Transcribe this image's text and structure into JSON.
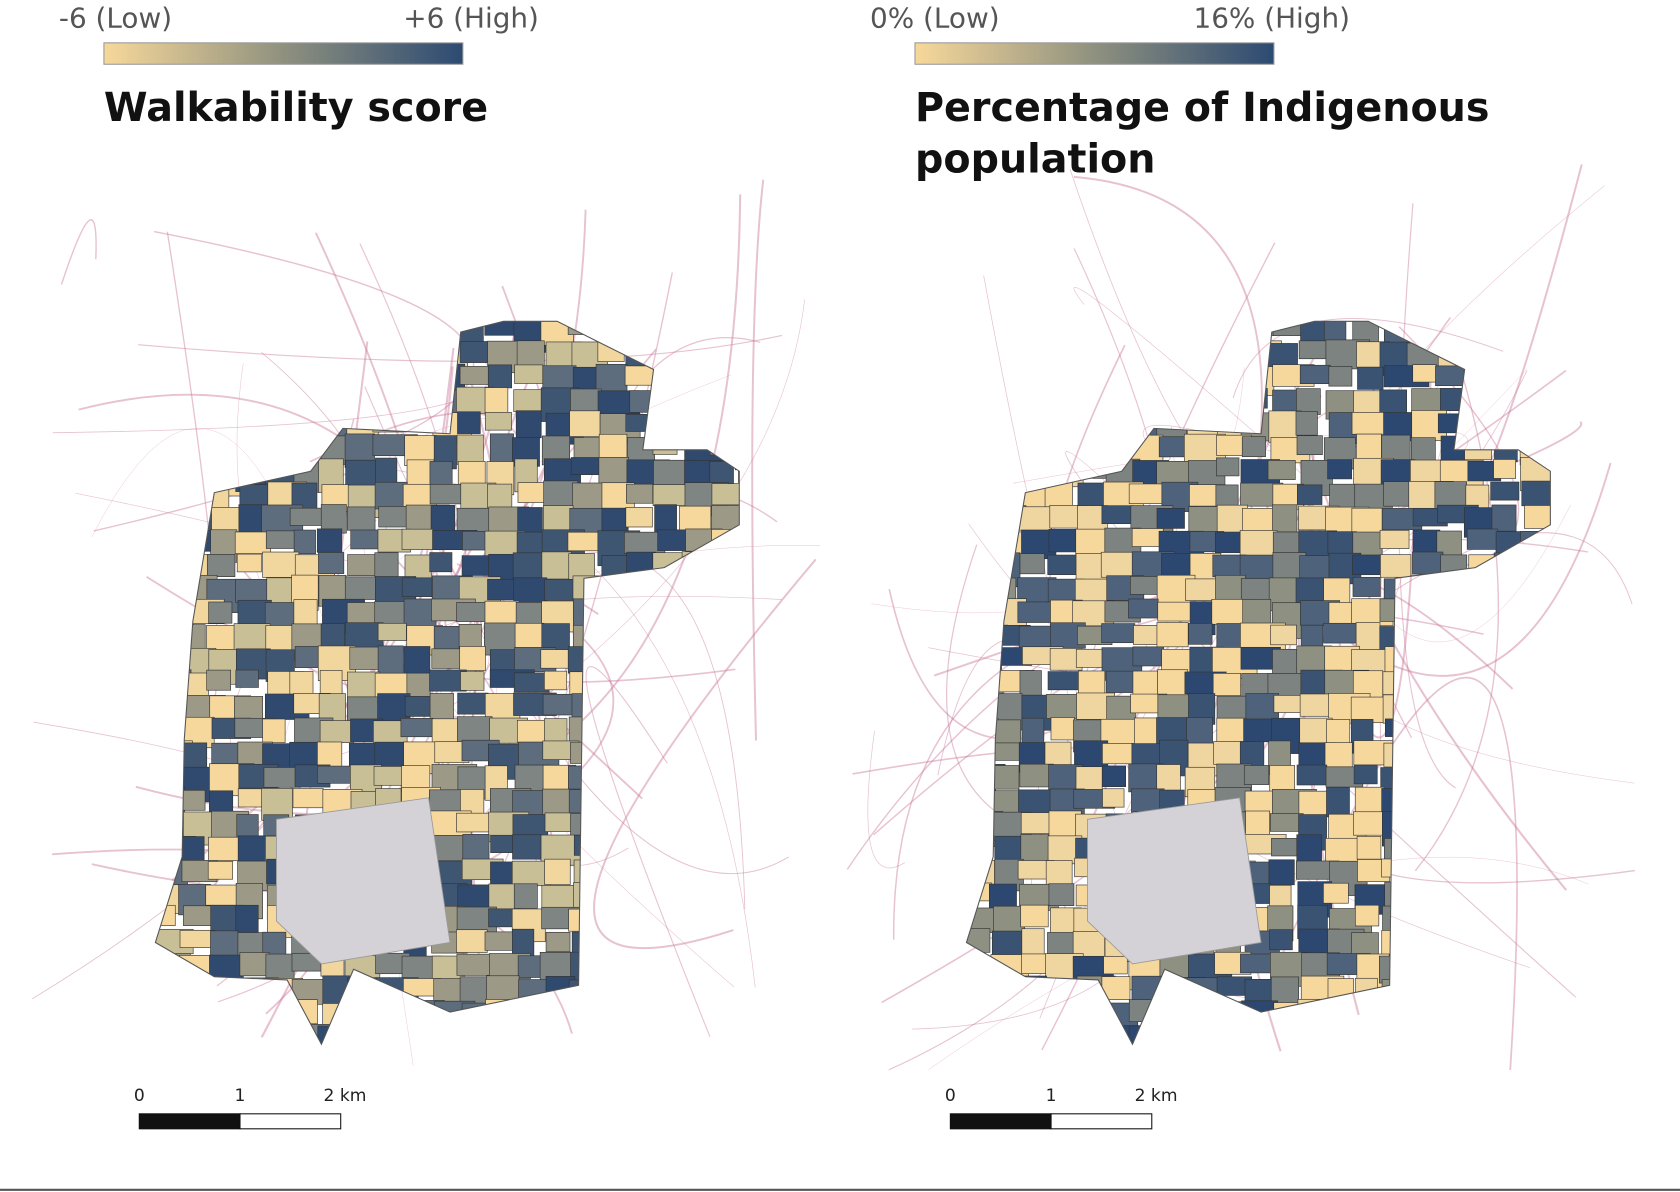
{
  "panels": [
    {
      "legend": {
        "low": "-6 (Low)",
        "high": "+6 (High)"
      },
      "title": [
        "Walkability score"
      ],
      "scale_bar": {
        "labels": [
          "0",
          "1",
          "2 km"
        ]
      }
    },
    {
      "legend": {
        "low": "0% (Low)",
        "high": "16% (High)"
      },
      "title": [
        "Percentage of Indigenous",
        "population"
      ],
      "scale_bar": {
        "labels": [
          "0",
          "1",
          "2 km"
        ]
      }
    }
  ]
}
